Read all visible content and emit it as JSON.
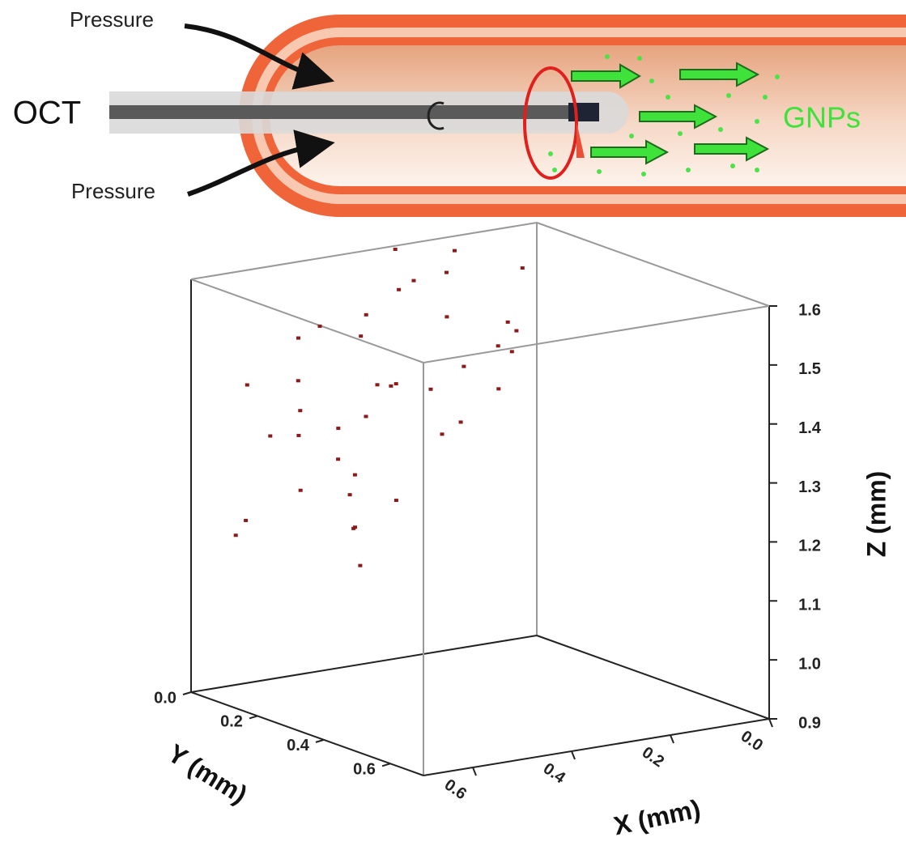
{
  "diagram": {
    "pressure_top": "Pressure",
    "pressure_bottom": "Pressure",
    "oct": "OCT",
    "gnps": "GNPs"
  },
  "chart_data": {
    "type": "scatter3d",
    "color": "#8b1a1a",
    "xlabel": "X (mm)",
    "ylabel": "Y (mm)",
    "zlabel": "Z (mm)",
    "xlim": [
      0,
      0.7
    ],
    "ylim": [
      0,
      0.7
    ],
    "zlim": [
      0.9,
      1.6
    ],
    "xticks": [
      {
        "value": 0,
        "label": "0.0"
      },
      0.2,
      0.4,
      0.6
    ],
    "yticks": [
      {
        "value": 0,
        "label": "0.0"
      },
      0.2,
      0.4,
      0.6
    ],
    "zticks": [
      {
        "value": 0.9,
        "label": "0.9"
      },
      {
        "value": 1,
        "label": "1.0"
      },
      1.1,
      1.2,
      1.3,
      1.4,
      1.5,
      1.6
    ],
    "x": [
      0.55,
      0.62,
      0.48,
      0.35,
      0.68,
      0.41,
      0.57,
      0.3,
      0.64,
      0.52,
      0.45,
      0.38,
      0.6,
      0.25,
      0.66,
      0.5,
      0.33,
      0.58,
      0.43,
      0.69,
      0.2,
      0.47,
      0.54,
      0.36,
      0.63,
      0.28,
      0.51,
      0.4,
      0.59,
      0.15,
      0.44,
      0.67,
      0.31,
      0.56,
      0.49,
      0.22,
      0.61,
      0.37,
      0.53,
      0.42
    ],
    "y": [
      0.1,
      0.05,
      0.2,
      0.15,
      0.3,
      0.08,
      0.25,
      0.02,
      0.4,
      0.12,
      0.35,
      0.28,
      0.18,
      0.1,
      0.45,
      0.32,
      0.22,
      0.06,
      0.42,
      0.15,
      0.05,
      0.26,
      0.38,
      0.12,
      0.22,
      0.3,
      0.04,
      0.48,
      0.33,
      0.18,
      0.14,
      0.09,
      0.4,
      0.27,
      0.5,
      0.24,
      0.36,
      0.07,
      0.19,
      0.55
    ],
    "z": [
      1.5,
      1.42,
      1.55,
      1.58,
      1.3,
      1.48,
      1.38,
      1.6,
      1.25,
      1.52,
      1.45,
      1.35,
      1.4,
      1.57,
      1.2,
      1.46,
      1.53,
      1.33,
      1.5,
      1.22,
      1.59,
      1.44,
      1.28,
      1.56,
      1.37,
      1.49,
      1.41,
      1.47,
      1.32,
      1.58,
      1.36,
      1.18,
      1.54,
      1.27,
      1.43,
      1.51,
      1.24,
      1.39,
      1.31,
      1.55
    ]
  }
}
